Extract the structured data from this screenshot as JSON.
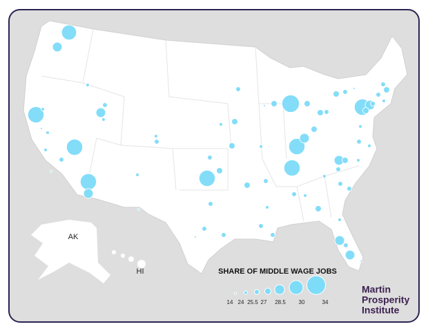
{
  "map": {
    "labels": {
      "alaska": "AK",
      "hawaii": "HI"
    },
    "legend": {
      "title": "SHARE OF MIDDLE WAGE JOBS",
      "values": [
        14,
        24,
        25.5,
        27,
        28.5,
        30,
        34
      ],
      "color": "#7ddcf8"
    },
    "bubbles": {
      "values": [
        31,
        28.5,
        24,
        28.5,
        25.5,
        24,
        32,
        24,
        14,
        24,
        32,
        25.5,
        14,
        24,
        32,
        28.5,
        24,
        25.5,
        24,
        14,
        25.5,
        27,
        25.5,
        32,
        27,
        25.5,
        25.5,
        25.5,
        14,
        24,
        27,
        24,
        27,
        25.5,
        32,
        32,
        28.5,
        27,
        33,
        27,
        14,
        27,
        27,
        25.5,
        32,
        28.5,
        27,
        25.5,
        25.5,
        25.5,
        24,
        27,
        25.5,
        14,
        27,
        24,
        25.5,
        24,
        24,
        28.5,
        27,
        25.5,
        25.5,
        25.5,
        27,
        25.5,
        24,
        24,
        25.5,
        25.5,
        24,
        28.5,
        25.5,
        28.5,
        14,
        24
      ]
    },
    "logo": [
      "Martin",
      "Prosperity",
      "Institute"
    ]
  }
}
